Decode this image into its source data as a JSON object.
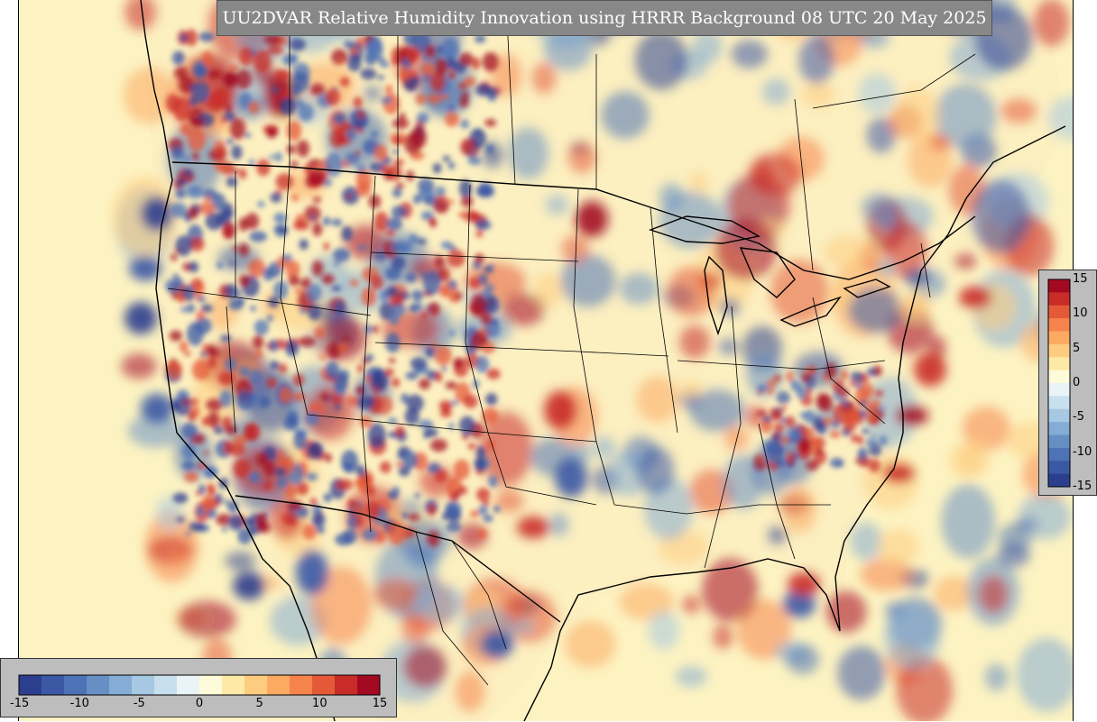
{
  "title": "UU2DVAR Relative Humidity Innovation using HRRR Background 08 UTC 20 May 2025",
  "colorbar": {
    "ticks": [
      "15",
      "10",
      "5",
      "0",
      "-5",
      "-10",
      "-15"
    ],
    "min": -15,
    "max": 15,
    "colors": [
      "#2c3f8f",
      "#3b58a5",
      "#4d72b5",
      "#6690c4",
      "#84acd4",
      "#a6c8e2",
      "#c8e0ee",
      "#eaf4f6",
      "#fdfbd9",
      "#fee9a6",
      "#fdcc80",
      "#fcaa62",
      "#f6834b",
      "#e45a38",
      "#c92b28",
      "#a30a22"
    ]
  },
  "map": {
    "ocean_color": "#fdf7c4",
    "land_color": "#fdf1bf",
    "features": [
      "coastlines",
      "state-borders",
      "country-borders",
      "great-lakes"
    ]
  }
}
